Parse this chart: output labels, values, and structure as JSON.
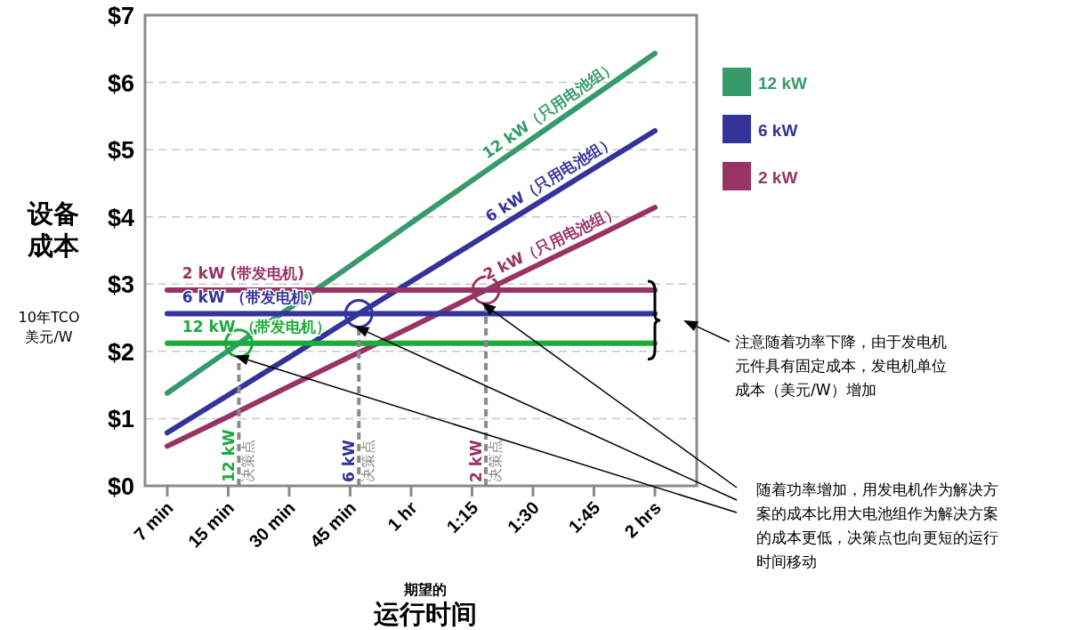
{
  "chart_data": {
    "type": "line",
    "ylabel": "设备成本",
    "xlabel": "运行时间",
    "annotations": [
      "10年TCO美元/W",
      "期望的",
      "注意随着功率下降，由于发电机元件具有固定成本，发电机单位成本（美元/W）增加",
      "随着功率增加，用发电机作为解决方案的成本比用大电池组作为解决方案的成本更低，决策点也向更短的运行时间移动",
      "12 kW（只用电池组）",
      "6 kW（只用电池组）",
      "2 kW（只用电池组）",
      "2 kW (带发电机)",
      "6 kW （带发电机）",
      "12 kW （带发电机）",
      "12 kW",
      "决策点",
      "6 kW",
      "决策点",
      "2 kW",
      "决策点"
    ],
    "categories": [
      "7 min",
      "15 min",
      "30 min",
      "45 min",
      "1 hr",
      "1:15",
      "1:30",
      "1:45",
      "2 hrs"
    ],
    "ylim": [
      0,
      7
    ],
    "yticks": [
      {
        "value": 0,
        "label": "$0"
      },
      {
        "value": 1,
        "label": "$1"
      },
      {
        "value": 2,
        "label": "$2"
      },
      {
        "value": 3,
        "label": "$3"
      },
      {
        "value": 4,
        "label": "$4"
      },
      {
        "value": 5,
        "label": "$5"
      },
      {
        "value": 6,
        "label": "$6"
      },
      {
        "value": 7,
        "label": "$7"
      }
    ],
    "grid": "y",
    "legend": "right",
    "series": [
      {
        "name": "12 kW",
        "color": "#379a6a",
        "values": [
          1.38,
          2.01,
          2.64,
          3.27,
          3.91,
          4.54,
          5.17,
          5.8,
          6.43
        ]
      },
      {
        "name": "6 kW",
        "color": "#333399",
        "values": [
          0.79,
          1.35,
          1.91,
          2.48,
          3.04,
          3.6,
          4.16,
          4.72,
          5.28
        ]
      },
      {
        "name": "2 kW",
        "color": "#993366",
        "values": [
          0.59,
          1.03,
          1.48,
          1.92,
          2.36,
          2.81,
          3.25,
          3.69,
          4.14
        ]
      },
      {
        "color": "#993366",
        "values": [
          2.91,
          2.91,
          2.91,
          2.91,
          2.91,
          2.91,
          2.91,
          2.91,
          2.91
        ]
      },
      {
        "color": "#333399",
        "values": [
          2.56,
          2.56,
          2.56,
          2.56,
          2.56,
          2.56,
          2.56,
          2.56,
          2.56
        ]
      },
      {
        "color": "#1aab3a",
        "values": [
          2.12,
          2.12,
          2.12,
          2.12,
          2.12,
          2.12,
          2.12,
          2.12,
          2.12
        ]
      }
    ]
  }
}
